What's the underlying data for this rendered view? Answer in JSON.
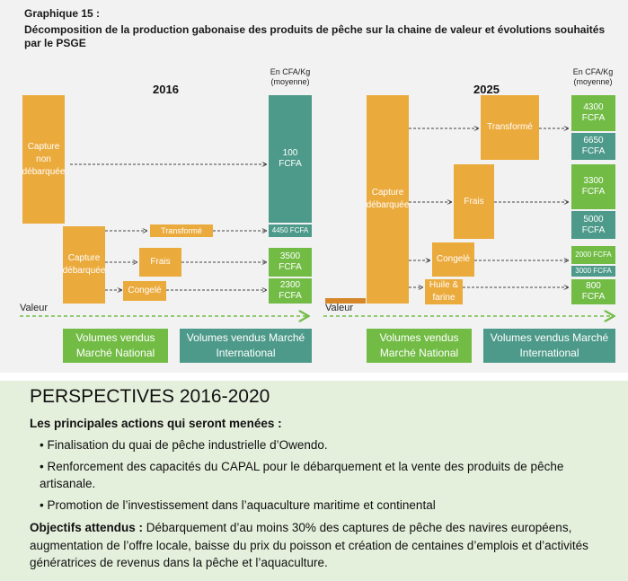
{
  "header": {
    "label": "Graphique 15 :",
    "title": "Décomposition de la production gabonaise des produits de pêche sur la chaine de valeur et évolutions souhaités par le PSGE"
  },
  "panel_2016": {
    "year": "2016",
    "price_header": [
      "En CFA/Kg",
      "(moyenne)"
    ],
    "capture_non_debarquee": "Capture non débarquée",
    "capture_debarquee": "Capture débarquée",
    "transforme": "Transformé",
    "frais": "Frais",
    "congele": "Congelé",
    "price_capture_non_debarquee": "100 FCFA",
    "price_transforme": "4450 FCFA",
    "price_frais": "3500 FCFA",
    "price_congele": "2300 FCFA",
    "axis_label": "Valeur",
    "volumes_national": "Volumes vendus Marché National",
    "volumes_international": "Volumes vendus Marché International"
  },
  "panel_2025": {
    "year": "2025",
    "price_header": [
      "En CFA/Kg",
      "(moyenne)"
    ],
    "capture_debarquee": "Capture débarquée",
    "transforme": "Transformé",
    "frais": "Frais",
    "congele": "Congelé",
    "huile_farine": "Huile & farine",
    "price_transforme_national": "4300 FCFA",
    "price_transforme_international": "6650 FCFA",
    "price_frais_national": "3300 FCFA",
    "price_frais_international": "5000 FCFA",
    "price_congele_national": "2000 FCFA",
    "price_congele_international": "3000 FCFA",
    "price_huile_farine": "800 FCFA",
    "axis_label": "Valeur",
    "volumes_national": "Volumes vendus Marché National",
    "volumes_international": "Volumes vendus Marché International"
  },
  "perspectives": {
    "title": "PERSPECTIVES 2016-2020",
    "actions_title": "Les principales actions qui seront menées :",
    "actions": [
      "Finalisation du quai de pêche industrielle d’Owendo.",
      "Renforcement des capacités du CAPAL pour le débarquement et la vente des produits de pêche artisanale.",
      "Promotion de l’investissement dans l’aquaculture maritime et continental"
    ],
    "objectives_label": "Objectifs attendus :",
    "objectives_text": " Débarquement d’au moins 30% des captures de pêche des navires européens, augmentation de l’offre locale, baisse du prix du poisson et création de centaines d’emplois et d’activités génératrices de revenus dans la pêche et l’aquaculture."
  }
}
